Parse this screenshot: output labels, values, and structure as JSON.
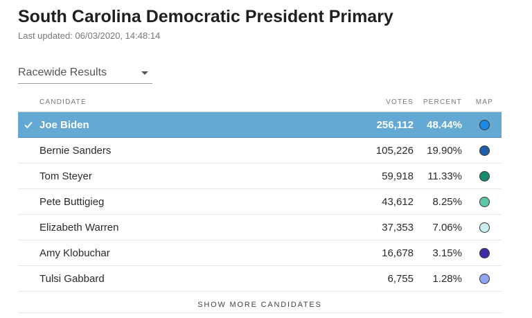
{
  "header": {
    "title": "South Carolina Democratic President Primary",
    "last_updated": "Last updated: 06/03/2020, 14:48:14"
  },
  "dropdown": {
    "selected": "Racewide Results"
  },
  "table": {
    "columns": {
      "candidate": "CANDIDATE",
      "votes": "VOTES",
      "percent": "PERCENT",
      "map": "MAP"
    },
    "rows": [
      {
        "name": "Joe Biden",
        "votes": "256,112",
        "percent": "48.44%",
        "color": "#1e88e5",
        "winner": true
      },
      {
        "name": "Bernie Sanders",
        "votes": "105,226",
        "percent": "19.90%",
        "color": "#1f5fa8",
        "winner": false
      },
      {
        "name": "Tom Steyer",
        "votes": "59,918",
        "percent": "11.33%",
        "color": "#1a8a6e",
        "winner": false
      },
      {
        "name": "Pete Buttigieg",
        "votes": "43,612",
        "percent": "8.25%",
        "color": "#5cc7a6",
        "winner": false
      },
      {
        "name": "Elizabeth Warren",
        "votes": "37,353",
        "percent": "7.06%",
        "color": "#c8eef2",
        "winner": false
      },
      {
        "name": "Amy Klobuchar",
        "votes": "16,678",
        "percent": "3.15%",
        "color": "#3e2ba8",
        "winner": false
      },
      {
        "name": "Tulsi Gabbard",
        "votes": "6,755",
        "percent": "1.28%",
        "color": "#8ea3f2",
        "winner": false
      }
    ],
    "show_more": "SHOW MORE CANDIDATES"
  }
}
